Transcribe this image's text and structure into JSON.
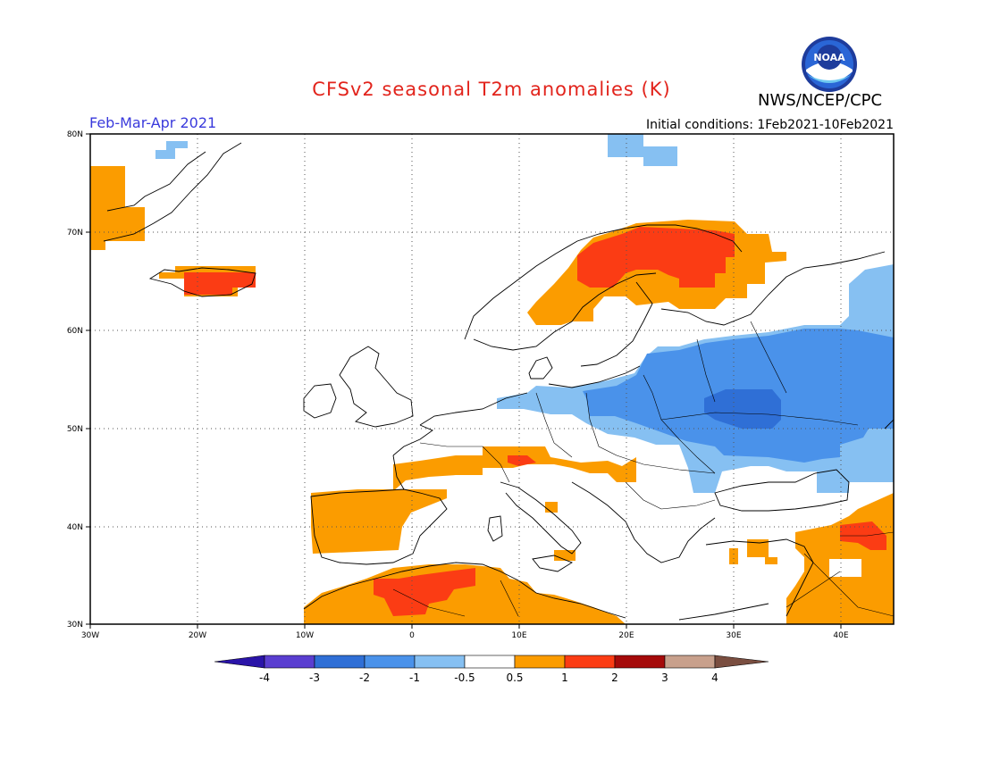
{
  "header": {
    "title": "CFSv2 seasonal T2m anomalies (K)",
    "agency": "NWS/NCEP/CPC",
    "season": "Feb-Mar-Apr 2021",
    "initial_conditions": "Initial conditions: 1Feb2021-10Feb2021",
    "logo_text": "NOAA"
  },
  "axes": {
    "lon_labels": [
      "30W",
      "20W",
      "10W",
      "0",
      "10E",
      "20E",
      "30E",
      "40E"
    ],
    "lat_labels": [
      "30N",
      "40N",
      "50N",
      "60N",
      "70N",
      "80N"
    ]
  },
  "colorbar": {
    "labels": [
      "-4",
      "-3",
      "-2",
      "-1",
      "-0.5",
      "0.5",
      "1",
      "2",
      "3",
      "4"
    ],
    "colors": [
      "#2a14a8",
      "#5a3ed0",
      "#2f6fd6",
      "#4a92ea",
      "#86c0f2",
      "#ffffff",
      "#fb9c00",
      "#fb3c14",
      "#a50a0a",
      "#c8a08c",
      "#7a4e40"
    ]
  },
  "colors": {
    "light_blue": "#86c0f2",
    "mid_blue": "#4a92ea",
    "dark_blue": "#2f6fd6",
    "orange": "#fb9c00",
    "red": "#fb3c14"
  }
}
